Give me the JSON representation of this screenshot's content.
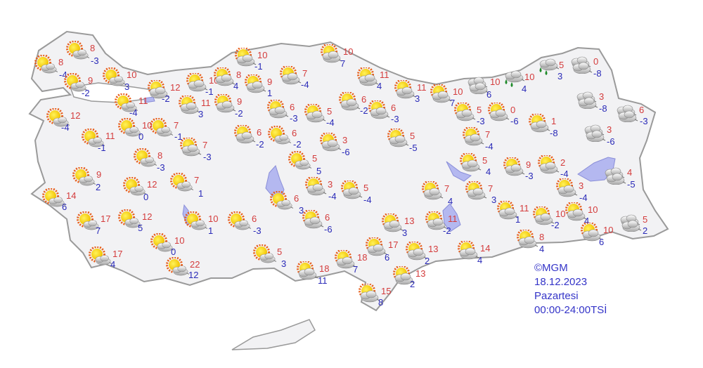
{
  "legend": {
    "copyright": "©MGM",
    "date": "18.12.2023",
    "day": "Pazartesi",
    "period": "00:00-24:00TSİ"
  },
  "colors": {
    "max_temp": "#d43c3c",
    "min_temp": "#2a2ab8",
    "land": "#f2f2f4",
    "border": "#9a9a9a",
    "water": "#b4b8f0"
  },
  "icons": {
    "s": "sunny-with-light-cloud-icon",
    "p": "partly-cloudy-icon",
    "c": "cloudy-icon",
    "r": "rain-icon"
  },
  "stations": [
    {
      "max": "8",
      "min": "-3",
      "cond": "s"
    },
    {
      "max": "8",
      "min": "-4",
      "cond": "s"
    },
    {
      "max": "9",
      "min": "-2",
      "cond": "s"
    },
    {
      "max": "10",
      "min": "3",
      "cond": "s"
    },
    {
      "max": "11",
      "min": "-4",
      "cond": "s"
    },
    {
      "max": "12",
      "min": "-2",
      "cond": "p"
    },
    {
      "max": "12",
      "min": "-4",
      "cond": "s"
    },
    {
      "max": "10",
      "min": "-1",
      "cond": "p"
    },
    {
      "max": "8",
      "min": "4",
      "cond": "p"
    },
    {
      "max": "10",
      "min": "-1",
      "cond": "p"
    },
    {
      "max": "9",
      "min": "1",
      "cond": "p"
    },
    {
      "max": "11",
      "min": "3",
      "cond": "p"
    },
    {
      "max": "9",
      "min": "-2",
      "cond": "p"
    },
    {
      "max": "7",
      "min": "-4",
      "cond": "p"
    },
    {
      "max": "10",
      "min": "7",
      "cond": "p"
    },
    {
      "max": "11",
      "min": "4",
      "cond": "p"
    },
    {
      "max": "6",
      "min": "-3",
      "cond": "p"
    },
    {
      "max": "5",
      "min": "-4",
      "cond": "p"
    },
    {
      "max": "6",
      "min": "-2",
      "cond": "p"
    },
    {
      "max": "6",
      "min": "-3",
      "cond": "p"
    },
    {
      "max": "11",
      "min": "3",
      "cond": "p"
    },
    {
      "max": "10",
      "min": "7",
      "cond": "p"
    },
    {
      "max": "10",
      "min": "6",
      "cond": "c"
    },
    {
      "max": "10",
      "min": "4",
      "cond": "r"
    },
    {
      "max": "5",
      "min": "3",
      "cond": "r"
    },
    {
      "max": "0",
      "min": "-8",
      "cond": "c"
    },
    {
      "max": "3",
      "min": "-8",
      "cond": "c"
    },
    {
      "max": "6",
      "min": "-3",
      "cond": "c"
    },
    {
      "max": "3",
      "min": "-6",
      "cond": "c"
    },
    {
      "max": "1",
      "min": "-8",
      "cond": "p"
    },
    {
      "max": "0",
      "min": "-6",
      "cond": "p"
    },
    {
      "max": "5",
      "min": "-3",
      "cond": "p"
    },
    {
      "max": "7",
      "min": "-4",
      "cond": "p"
    },
    {
      "max": "5",
      "min": "-5",
      "cond": "p"
    },
    {
      "max": "3",
      "min": "-6",
      "cond": "p"
    },
    {
      "max": "6",
      "min": "-2",
      "cond": "p"
    },
    {
      "max": "6",
      "min": "-2",
      "cond": "s"
    },
    {
      "max": "7",
      "min": "-1",
      "cond": "s"
    },
    {
      "max": "10",
      "min": "0",
      "cond": "s"
    },
    {
      "max": "11",
      "min": "-1",
      "cond": "s"
    },
    {
      "max": "7",
      "min": "-3",
      "cond": "p"
    },
    {
      "max": "8",
      "min": "-3",
      "cond": "s"
    },
    {
      "max": "5",
      "min": "5",
      "cond": "s"
    },
    {
      "max": "9",
      "min": "2",
      "cond": "s"
    },
    {
      "max": "12",
      "min": "0",
      "cond": "s"
    },
    {
      "max": "7",
      "min": "1",
      "cond": "s"
    },
    {
      "max": "14",
      "min": "6",
      "cond": "s"
    },
    {
      "max": "3",
      "min": "-4",
      "cond": "p"
    },
    {
      "max": "5",
      "min": "-4",
      "cond": "p"
    },
    {
      "max": "6",
      "min": "3",
      "cond": "s"
    },
    {
      "max": "17",
      "min": "7",
      "cond": "s"
    },
    {
      "max": "12",
      "min": "5",
      "cond": "s"
    },
    {
      "max": "10",
      "min": "1",
      "cond": "s"
    },
    {
      "max": "6",
      "min": "-3",
      "cond": "s"
    },
    {
      "max": "6",
      "min": "-6",
      "cond": "p"
    },
    {
      "max": "10",
      "min": "0",
      "cond": "s"
    },
    {
      "max": "17",
      "min": "4",
      "cond": "s"
    },
    {
      "max": "22",
      "min": "12",
      "cond": "s"
    },
    {
      "max": "5",
      "min": "3",
      "cond": "s"
    },
    {
      "max": "18",
      "min": "11",
      "cond": "p"
    },
    {
      "max": "18",
      "min": "7",
      "cond": "p"
    },
    {
      "max": "17",
      "min": "6",
      "cond": "p"
    },
    {
      "max": "13",
      "min": "3",
      "cond": "p"
    },
    {
      "max": "13",
      "min": "2",
      "cond": "p"
    },
    {
      "max": "13",
      "min": "2",
      "cond": "p"
    },
    {
      "max": "15",
      "min": "8",
      "cond": "p"
    },
    {
      "max": "11",
      "min": "-2",
      "cond": "p"
    },
    {
      "max": "14",
      "min": "4",
      "cond": "p"
    },
    {
      "max": "7",
      "min": "4",
      "cond": "p"
    },
    {
      "max": "7",
      "min": "3",
      "cond": "p"
    },
    {
      "max": "5",
      "min": "4",
      "cond": "p"
    },
    {
      "max": "9",
      "min": "-3",
      "cond": "p"
    },
    {
      "max": "2",
      "min": "-4",
      "cond": "p"
    },
    {
      "max": "3",
      "min": "-4",
      "cond": "p"
    },
    {
      "max": "11",
      "min": "1",
      "cond": "p"
    },
    {
      "max": "10",
      "min": "-2",
      "cond": "p"
    },
    {
      "max": "10",
      "min": "4",
      "cond": "p"
    },
    {
      "max": "10",
      "min": "6",
      "cond": "p"
    },
    {
      "max": "8",
      "min": "4",
      "cond": "p"
    },
    {
      "max": "4",
      "min": "-5",
      "cond": "c"
    },
    {
      "max": "5",
      "min": "2",
      "cond": "c"
    }
  ]
}
